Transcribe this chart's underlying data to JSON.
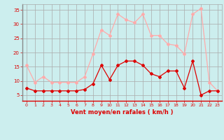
{
  "hours": [
    0,
    1,
    2,
    3,
    4,
    5,
    6,
    7,
    8,
    9,
    10,
    11,
    12,
    13,
    14,
    15,
    16,
    17,
    18,
    19,
    20,
    21,
    22,
    23
  ],
  "vent_moyen": [
    7.5,
    6.5,
    6.5,
    6.5,
    6.5,
    6.5,
    6.5,
    7.0,
    9.0,
    15.5,
    10.5,
    15.5,
    17.0,
    17.0,
    15.5,
    12.5,
    11.5,
    13.5,
    13.5,
    7.5,
    17.0,
    5.0,
    6.5,
    6.5
  ],
  "rafales": [
    15.5,
    9.5,
    11.5,
    9.5,
    9.5,
    9.5,
    9.5,
    11.5,
    19.5,
    28.0,
    26.0,
    33.5,
    31.5,
    30.5,
    33.5,
    26.0,
    26.0,
    23.0,
    22.5,
    19.5,
    33.5,
    35.5,
    9.5,
    6.5
  ],
  "color_moyen": "#dd0000",
  "color_rafales": "#ffaaaa",
  "bg_color": "#cceeee",
  "grid_color": "#aaaaaa",
  "xlabel": "Vent moyen/en rafales ( km/h )",
  "ylim": [
    3,
    37
  ],
  "yticks": [
    5,
    10,
    15,
    20,
    25,
    30,
    35
  ],
  "xticks": [
    0,
    1,
    2,
    3,
    4,
    5,
    6,
    7,
    8,
    9,
    10,
    11,
    12,
    13,
    14,
    15,
    16,
    17,
    18,
    19,
    20,
    21,
    22,
    23
  ],
  "marker": "D",
  "markersize": 2,
  "linewidth": 0.9
}
